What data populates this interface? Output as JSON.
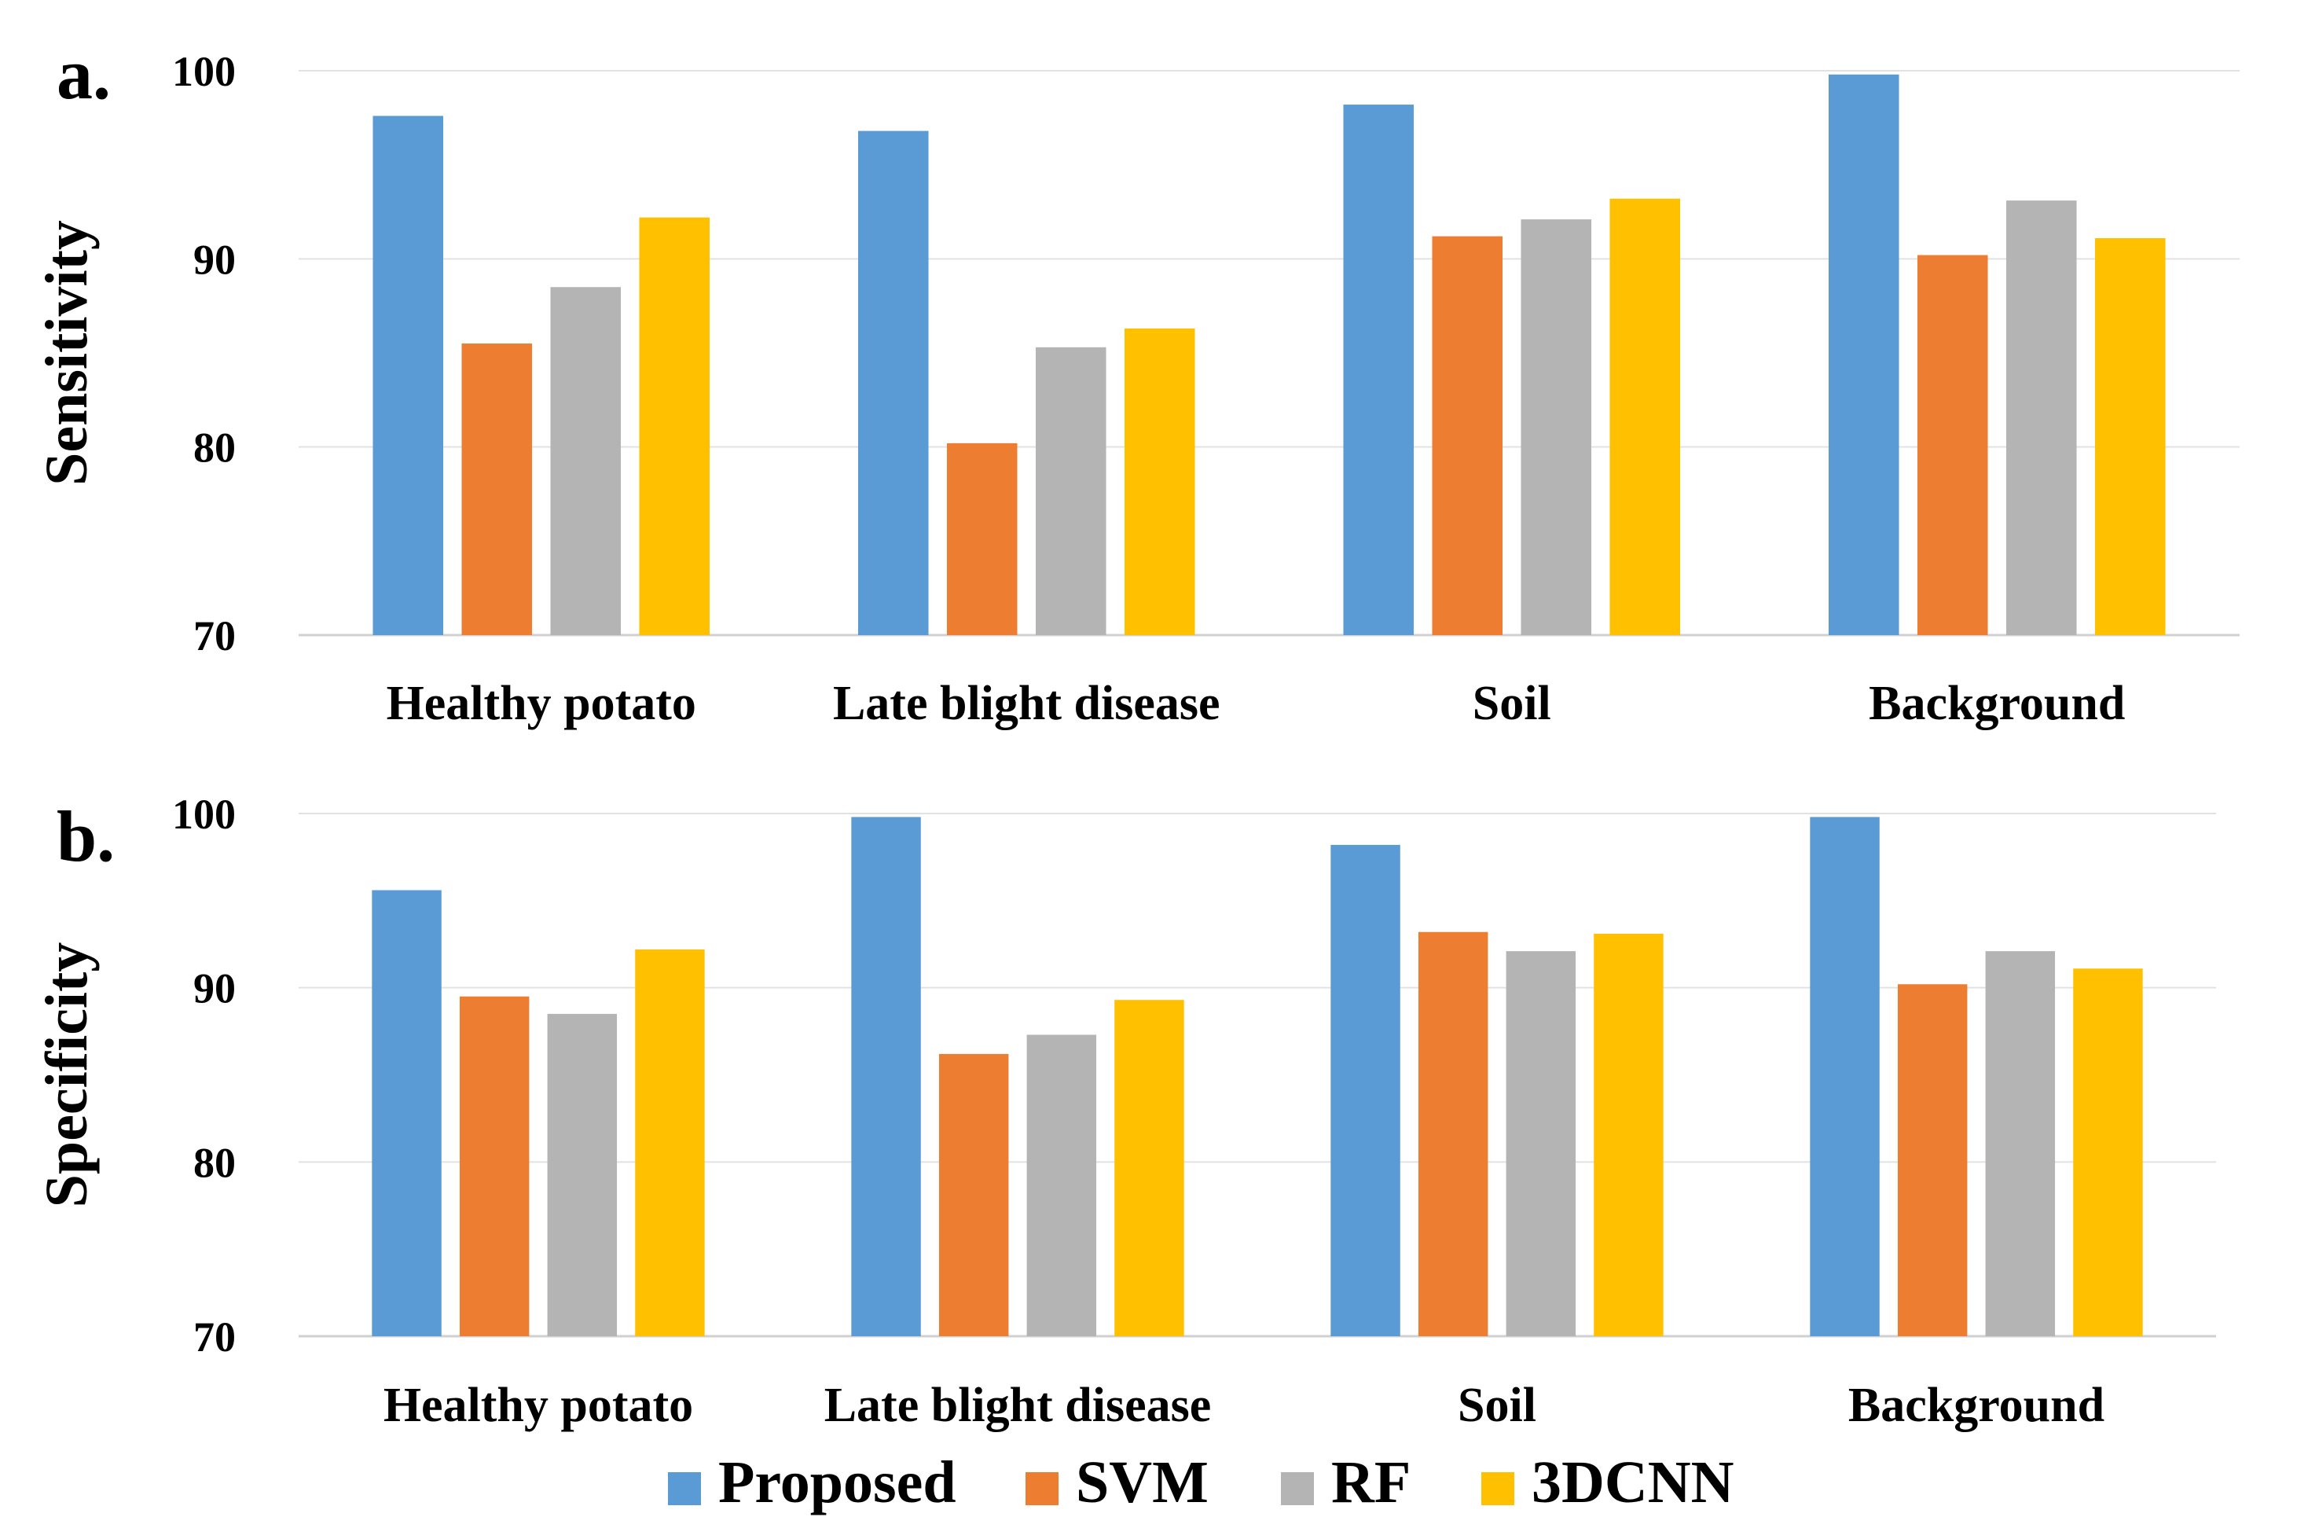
{
  "legend": {
    "items": [
      {
        "label": "Proposed",
        "color": "#5B9BD5"
      },
      {
        "label": "SVM",
        "color": "#ED7D31"
      },
      {
        "label": "RF",
        "color": "#B4B4B4"
      },
      {
        "label": "3DCNN",
        "color": "#FFC000"
      }
    ]
  },
  "chart_data": [
    {
      "type": "bar",
      "panel_label": "a.",
      "title": "",
      "xlabel": "",
      "ylabel": "Sensitivity",
      "ylim": [
        70,
        100
      ],
      "yticks": [
        70,
        80,
        90,
        100
      ],
      "grid": true,
      "categories": [
        "Healthy potato",
        "Late blight disease",
        "Soil",
        "Background"
      ],
      "series": [
        {
          "name": "Proposed",
          "values": [
            97.6,
            96.8,
            98.2,
            99.8
          ]
        },
        {
          "name": "SVM",
          "values": [
            85.5,
            80.2,
            91.2,
            90.2
          ]
        },
        {
          "name": "RF",
          "values": [
            88.5,
            85.3,
            92.1,
            93.1
          ]
        },
        {
          "name": "3DCNN",
          "values": [
            92.2,
            86.3,
            93.2,
            91.1
          ]
        }
      ]
    },
    {
      "type": "bar",
      "panel_label": "b.",
      "title": "",
      "xlabel": "",
      "ylabel": "Specificity",
      "ylim": [
        70,
        100
      ],
      "yticks": [
        70,
        80,
        90,
        100
      ],
      "grid": true,
      "categories": [
        "Healthy potato",
        "Late blight disease",
        "Soil",
        "Background"
      ],
      "series": [
        {
          "name": "Proposed",
          "values": [
            95.6,
            99.8,
            98.2,
            99.8
          ]
        },
        {
          "name": "SVM",
          "values": [
            89.5,
            86.2,
            93.2,
            90.2
          ]
        },
        {
          "name": "RF",
          "values": [
            88.5,
            87.3,
            92.1,
            92.1
          ]
        },
        {
          "name": "3DCNN",
          "values": [
            92.2,
            89.3,
            93.1,
            91.1
          ]
        }
      ]
    }
  ]
}
